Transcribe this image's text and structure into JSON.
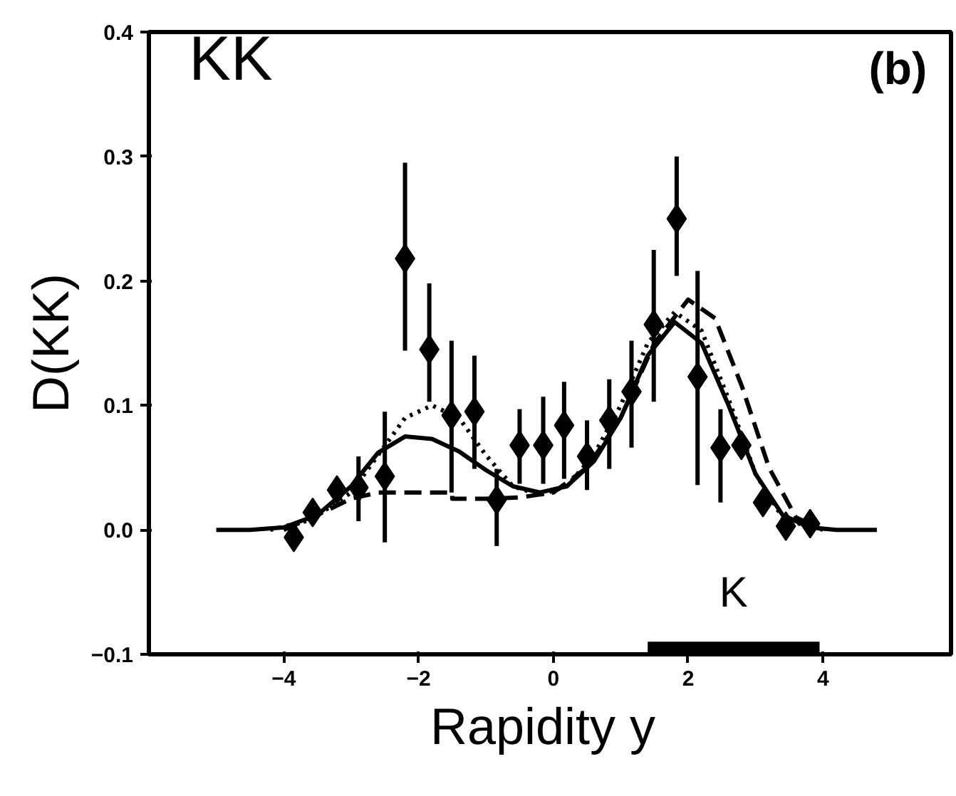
{
  "chart_data": {
    "type": "scatter",
    "xlabel": "Rapidity  y",
    "ylabel": "D(KK)",
    "xlim": [
      -6,
      5.9
    ],
    "ylim": [
      -0.1,
      0.4
    ],
    "xticks": [
      {
        "value": -4,
        "label": "−4"
      },
      {
        "value": -2,
        "label": "−2"
      },
      0,
      2,
      4
    ],
    "yticks": [
      {
        "value": -0.1,
        "label": "−0.1"
      },
      {
        "value": 0,
        "label": "0.0"
      },
      {
        "value": 0.1,
        "label": "0.1"
      },
      {
        "value": 0.2,
        "label": "0.2"
      },
      {
        "value": 0.3,
        "label": "0.3"
      },
      {
        "value": 0.4,
        "label": "0.4"
      }
    ],
    "grid": false,
    "annotations": [
      "KK",
      "(b)"
    ],
    "series": [
      {
        "color": "#000000",
        "marker": "diamond",
        "x": [
          -3.85,
          -3.57,
          -3.21,
          -2.89,
          -2.5,
          -2.2,
          -1.84,
          -1.51,
          -1.17,
          -0.84,
          -0.5,
          -0.15,
          0.16,
          0.5,
          0.83,
          1.16,
          1.49,
          1.83,
          2.14,
          2.48,
          2.79,
          3.11,
          3.45,
          3.81
        ],
        "values": [
          -0.006,
          0.014,
          0.032,
          0.034,
          0.043,
          0.218,
          0.145,
          0.092,
          0.095,
          0.024,
          0.068,
          0.068,
          0.084,
          0.059,
          0.088,
          0.111,
          0.165,
          0.25,
          0.123,
          0.066,
          0.068,
          0.022,
          0.003,
          0.005
        ],
        "errors": [
          null,
          null,
          null,
          [
            0.007,
            0.059
          ],
          [
            -0.01,
            0.095
          ],
          [
            0.144,
            0.295
          ],
          [
            0.103,
            0.198
          ],
          [
            0.03,
            0.152
          ],
          [
            0.049,
            0.14
          ],
          [
            -0.013,
            0.049
          ],
          [
            0.037,
            0.097
          ],
          [
            0.037,
            0.107
          ],
          [
            0.041,
            0.119
          ],
          [
            0.032,
            0.088
          ],
          [
            0.049,
            0.121
          ],
          [
            0.066,
            0.152
          ],
          [
            0.103,
            0.225
          ],
          [
            0.204,
            0.3
          ],
          [
            0.036,
            0.208
          ],
          [
            0.022,
            0.097
          ],
          null,
          null,
          null,
          null
        ]
      },
      {
        "type": "line",
        "color": "#000000",
        "line_style": "solid",
        "x": [
          -5,
          -4.5,
          -4,
          -3.5,
          -3,
          -2.6,
          -2.2,
          -1.8,
          -1.4,
          -1,
          -0.6,
          -0.2,
          0.2,
          0.6,
          1,
          1.4,
          1.8,
          2.2,
          2.6,
          3,
          3.4,
          3.8,
          4.2,
          4.8
        ],
        "values": [
          0,
          0,
          0.002,
          0.012,
          0.035,
          0.062,
          0.075,
          0.073,
          0.063,
          0.048,
          0.035,
          0.03,
          0.035,
          0.055,
          0.09,
          0.14,
          0.167,
          0.15,
          0.1,
          0.045,
          0.012,
          0.002,
          0,
          0
        ]
      },
      {
        "type": "line",
        "color": "#000000",
        "line_style": "dotted",
        "x": [
          -4.2,
          -3.6,
          -3,
          -2.6,
          -2.2,
          -1.8,
          -1.4,
          -1,
          -0.6,
          -0.2,
          0.2,
          0.6,
          1,
          1.4,
          1.8,
          2.2,
          2.6,
          3,
          3.4,
          3.8
        ],
        "values": [
          0,
          0.008,
          0.03,
          0.06,
          0.09,
          0.1,
          0.09,
          0.06,
          0.035,
          0.028,
          0.035,
          0.06,
          0.1,
          0.15,
          0.175,
          0.16,
          0.105,
          0.045,
          0.01,
          0.002
        ]
      },
      {
        "type": "line",
        "color": "#000000",
        "line_style": "dashed",
        "x": [
          -4,
          -3.5,
          -3,
          -2.6,
          -2.2,
          -1.8,
          -1.5,
          -1.5,
          -1,
          -0.5,
          0,
          0.5,
          1,
          1.5,
          2,
          2.4,
          2.8,
          3.2,
          3.6,
          4
        ],
        "values": [
          0,
          0.012,
          0.025,
          0.03,
          0.03,
          0.03,
          0.03,
          0.025,
          0.025,
          0.026,
          0.03,
          0.05,
          0.09,
          0.15,
          0.185,
          0.17,
          0.115,
          0.05,
          0.01,
          0
        ]
      },
      {
        "type": "line",
        "name": "K",
        "color": "#000000",
        "line_style": "solid",
        "x": [
          1.4,
          3.95
        ],
        "values": [
          -0.095,
          -0.095
        ]
      }
    ]
  }
}
